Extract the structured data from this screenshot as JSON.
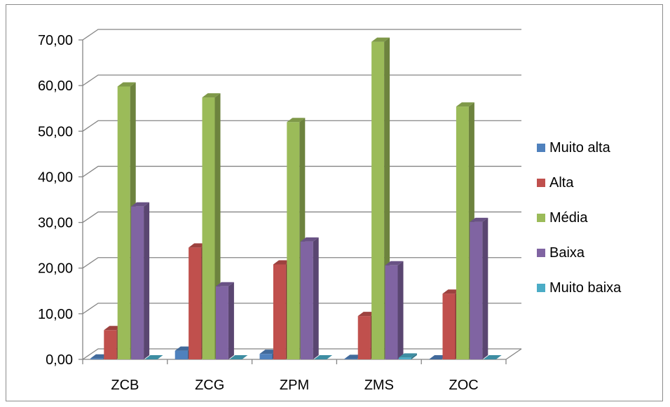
{
  "chart_data": {
    "type": "bar",
    "style": "3d-clustered-column",
    "categories": [
      "ZCB",
      "ZCG",
      "ZPM",
      "ZMS",
      "ZOC"
    ],
    "series": [
      {
        "name": "Muito alta",
        "color": "#4F81BD",
        "values": [
          0.2,
          1.9,
          1.2,
          0.1,
          0.0
        ]
      },
      {
        "name": "Alta",
        "color": "#C0504D",
        "values": [
          6.4,
          24.5,
          20.8,
          9.5,
          14.4
        ]
      },
      {
        "name": "Média",
        "color": "#9BBB59",
        "values": [
          59.8,
          57.4,
          52.0,
          69.6,
          55.4
        ]
      },
      {
        "name": "Baixa",
        "color": "#8064A2",
        "values": [
          33.5,
          16.0,
          25.8,
          20.6,
          30.1
        ]
      },
      {
        "name": "Muito baixa",
        "color": "#4BACC6",
        "values": [
          0.0,
          0.0,
          0.0,
          0.4,
          0.0
        ]
      }
    ],
    "yticks": [
      "0,00",
      "10,00",
      "20,00",
      "30,00",
      "40,00",
      "50,00",
      "60,00",
      "70,00"
    ],
    "ylim": [
      0,
      70
    ],
    "grid": true,
    "legend_position": "right"
  }
}
